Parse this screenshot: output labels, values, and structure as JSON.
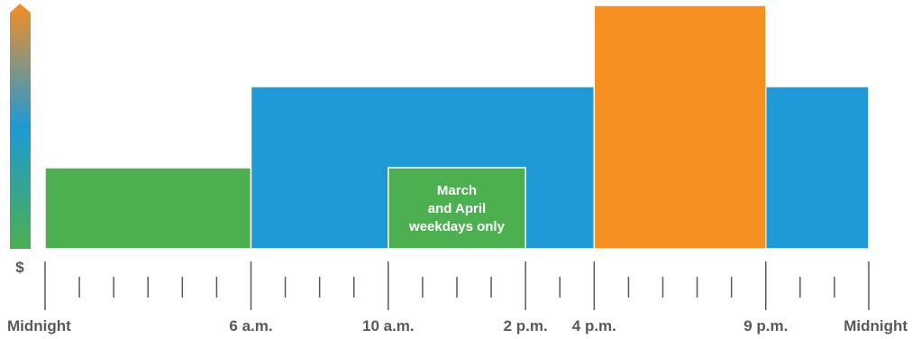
{
  "chart_data": {
    "type": "bar",
    "x_unit": "hour of day",
    "xlim": [
      0,
      24
    ],
    "ylim": [
      0,
      3
    ],
    "y_axis_label": "$",
    "colors": {
      "off_peak": "#4caf50",
      "mid_peak": "#1f99d6",
      "on_peak": "#f58f22",
      "axis": "#58595b"
    },
    "segments": [
      {
        "start": 0,
        "end": 6,
        "value": 1,
        "color": "#4caf50"
      },
      {
        "start": 6,
        "end": 16,
        "value": 2,
        "color": "#1f99d6"
      },
      {
        "start": 16,
        "end": 21,
        "value": 3,
        "color": "#f58f22"
      },
      {
        "start": 21,
        "end": 24,
        "value": 2,
        "color": "#1f99d6"
      }
    ],
    "overlays": [
      {
        "start": 10,
        "end": 14,
        "value": 1,
        "color": "#4caf50",
        "label_lines": [
          "March",
          "and April",
          "weekdays only"
        ]
      }
    ],
    "major_ticks": [
      0,
      6,
      10,
      14,
      16,
      21,
      24
    ],
    "tick_labels": [
      {
        "x": 0,
        "text": "Midnight",
        "anchor": "start"
      },
      {
        "x": 6,
        "text": "6 a.m.",
        "anchor": "middle"
      },
      {
        "x": 10,
        "text": "10 a.m.",
        "anchor": "middle"
      },
      {
        "x": 14,
        "text": "2 p.m.",
        "anchor": "middle"
      },
      {
        "x": 16,
        "text": "4 p.m.",
        "anchor": "middle"
      },
      {
        "x": 21,
        "text": "9 p.m.",
        "anchor": "middle"
      },
      {
        "x": 24,
        "text": "Midnight",
        "anchor": "end"
      }
    ]
  }
}
